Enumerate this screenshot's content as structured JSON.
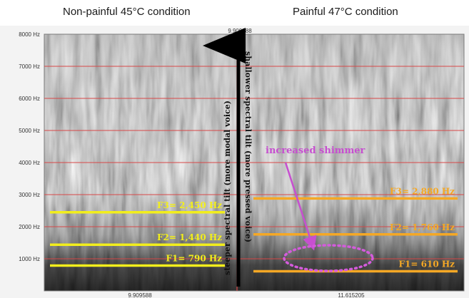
{
  "titles": {
    "left": "Non-painful 45°C  condition",
    "right": "Painful 47°C condition"
  },
  "y_axis": {
    "ticks": [
      "1000 Hz",
      "2000 Hz",
      "3000 Hz",
      "4000 Hz",
      "5000 Hz",
      "6000 Hz",
      "7000 Hz",
      "8000 Hz"
    ],
    "values": [
      1000,
      2000,
      3000,
      4000,
      5000,
      6000,
      7000,
      8000
    ],
    "max": 8000
  },
  "time_markers": {
    "top": "9.909588",
    "bottom_left": "9.909588",
    "bottom_right": "11.615205"
  },
  "formants": {
    "left": [
      {
        "label": "F3= 2,450 Hz",
        "hz": 2450
      },
      {
        "label": "F2= 1,440 Hz",
        "hz": 1440
      },
      {
        "label": "F1= 790 Hz",
        "hz": 790
      }
    ],
    "right": [
      {
        "label": "F3= 2,880 Hz",
        "hz": 2880
      },
      {
        "label": "F2= 1,760 Hz",
        "hz": 1760
      },
      {
        "label": "F1= 610 Hz",
        "hz": 610
      }
    ]
  },
  "annotations": {
    "tilt_steeper": "steeper spectral tilt (more modal voice)",
    "tilt_shallower": "shallower spectral tilt (more pressed voice)",
    "shimmer": "increased shimmer",
    "shimmer_hz": 800
  },
  "colors": {
    "left_formant": "#f2ee1c",
    "right_formant": "#f5a825",
    "gridline": "#d84848",
    "shimmer": "#c74fd0"
  }
}
